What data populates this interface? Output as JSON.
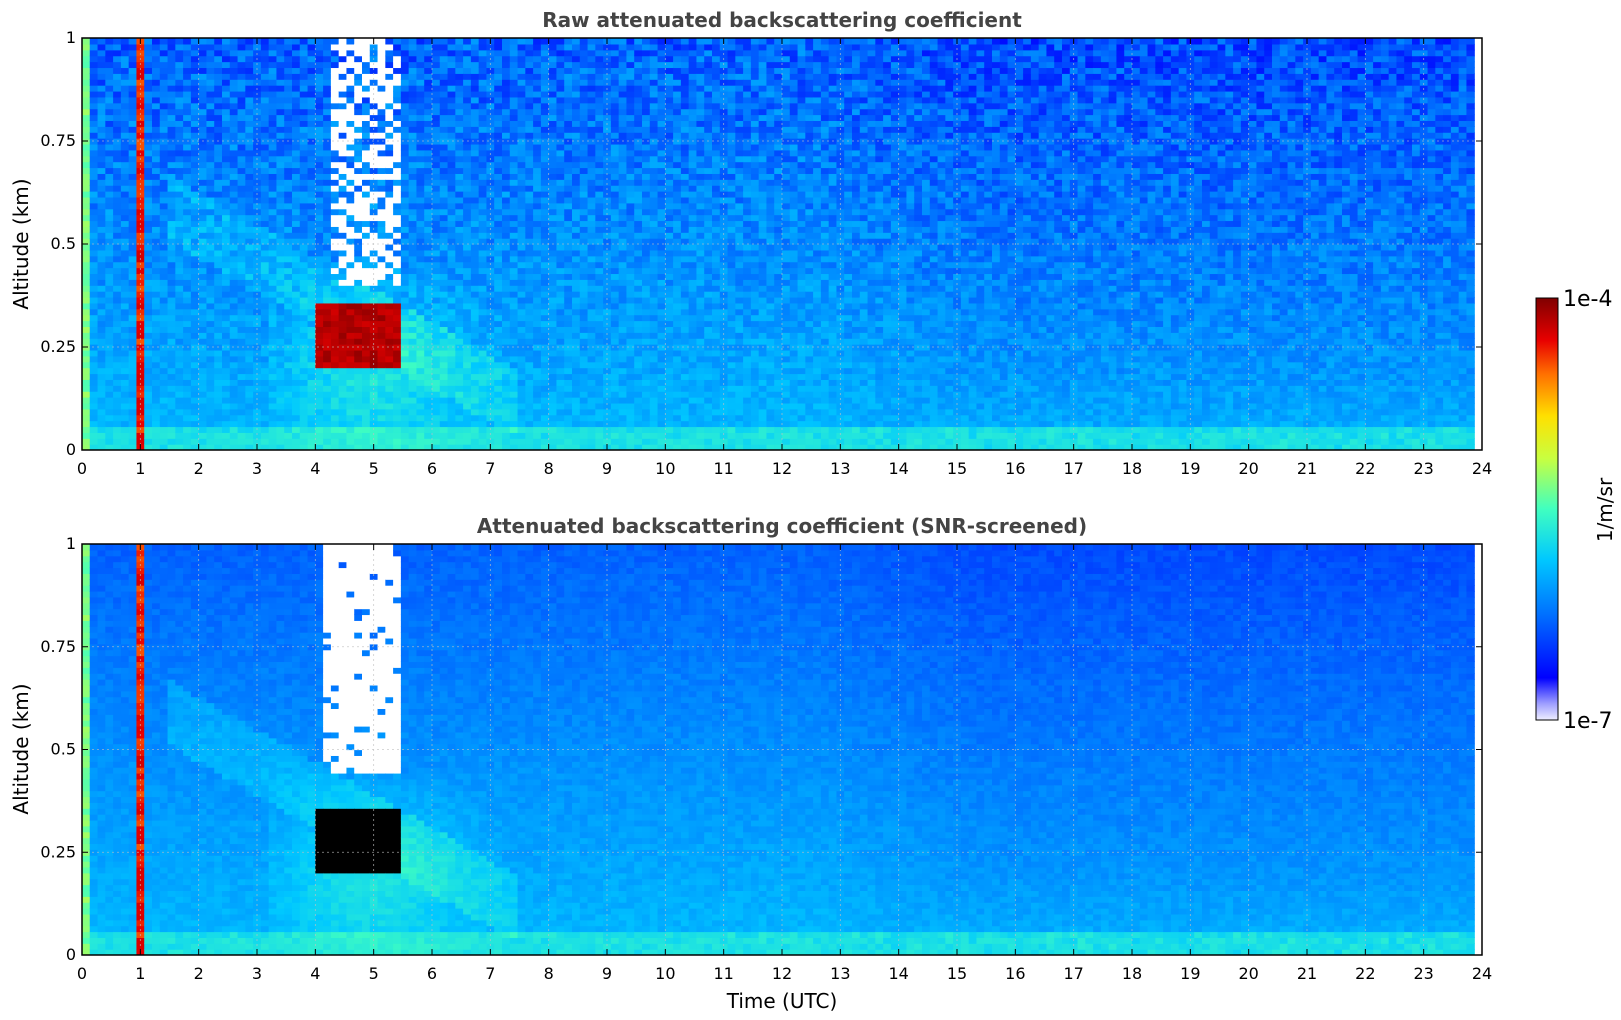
{
  "chart_data": [
    {
      "type": "heatmap",
      "title": "Raw attenuated backscattering coefficient",
      "xlabel": "",
      "ylabel": "Altitude (km)",
      "xlim": [
        0,
        24
      ],
      "ylim": [
        0,
        1
      ],
      "xticks": [
        "0",
        "1",
        "2",
        "3",
        "4",
        "5",
        "6",
        "7",
        "8",
        "9",
        "10",
        "11",
        "12",
        "13",
        "14",
        "15",
        "16",
        "17",
        "18",
        "19",
        "20",
        "21",
        "22",
        "23",
        "24"
      ],
      "yticks": [
        "0",
        "0.25",
        "0.5",
        "0.75",
        "1"
      ],
      "grid": true,
      "scale": "log",
      "features": [
        {
          "x_range": [
            0.05,
            0.15
          ],
          "y_range": [
            0,
            1
          ],
          "level": 0.55
        },
        {
          "x_range": [
            0.9,
            1.1
          ],
          "y_range": [
            0,
            1
          ],
          "level": 0.88
        },
        {
          "x_range": [
            4.0,
            5.5
          ],
          "y_range": [
            0.2,
            0.35
          ],
          "level": 0.95
        },
        {
          "x_range": [
            4.3,
            5.4
          ],
          "y_range": [
            0.4,
            1.0
          ],
          "level": 0.0
        },
        {
          "x_range": [
            0.0,
            24.0
          ],
          "y_range": [
            0.0,
            0.06
          ],
          "level": 0.42
        }
      ]
    },
    {
      "type": "heatmap",
      "title": "Attenuated backscattering coefficient (SNR-screened)",
      "xlabel": "Time (UTC)",
      "ylabel": "Altitude (km)",
      "xlim": [
        0,
        24
      ],
      "ylim": [
        0,
        1
      ],
      "xticks": [
        "0",
        "1",
        "2",
        "3",
        "4",
        "5",
        "6",
        "7",
        "8",
        "9",
        "10",
        "11",
        "12",
        "13",
        "14",
        "15",
        "16",
        "17",
        "18",
        "19",
        "20",
        "21",
        "22",
        "23",
        "24"
      ],
      "yticks": [
        "0",
        "0.25",
        "0.5",
        "0.75",
        "1"
      ],
      "grid": true,
      "scale": "log",
      "features": [
        {
          "x_range": [
            0.05,
            0.15
          ],
          "y_range": [
            0,
            1
          ],
          "level": 0.55
        },
        {
          "x_range": [
            0.9,
            1.1
          ],
          "y_range": [
            0,
            1
          ],
          "level": 0.88
        },
        {
          "x_range": [
            4.0,
            5.5
          ],
          "y_range": [
            0.2,
            0.35
          ],
          "level": 1.0
        },
        {
          "x_range": [
            4.1,
            5.5
          ],
          "y_range": [
            0.45,
            1.0
          ],
          "level": 0.0
        },
        {
          "x_range": [
            0.0,
            24.0
          ],
          "y_range": [
            0.0,
            0.06
          ],
          "level": 0.42
        }
      ]
    }
  ],
  "colorbar": {
    "max_label": "1e-4",
    "min_label": "1e-7",
    "unit_label": "1/m/sr",
    "colormap": "jet"
  }
}
